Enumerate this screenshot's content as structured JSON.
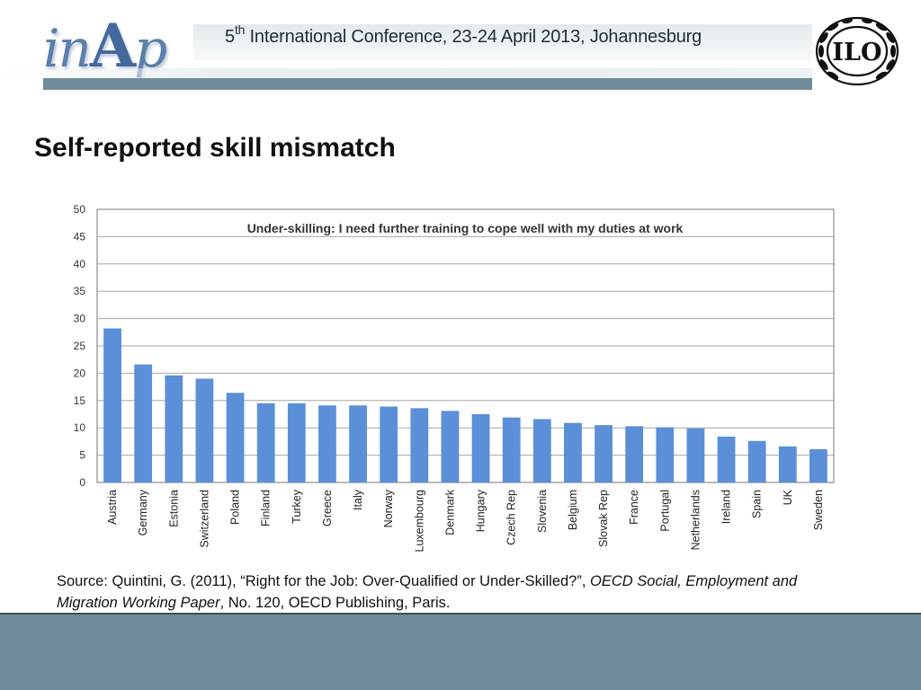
{
  "header": {
    "logo_text_left": "in",
    "logo_text_cap": "A",
    "logo_text_right": "p",
    "conference_ordinal": "5",
    "conference_sup": "th",
    "conference_title": "International Conference, 23-24 April 2013, Johannesburg",
    "ilo_logo_text": "ILO"
  },
  "slide": {
    "title": "Self-reported skill mismatch"
  },
  "source": {
    "prefix": "Source: Quintini, G. (2011), “Right for the Job: Over-Qualified or Under-Skilled?”, ",
    "italic": "OECD Social, Employment and Migration Working Paper",
    "suffix": ", No. 120, OECD Publishing, Paris."
  },
  "colors": {
    "bar": "#5b8fd8",
    "header_bar": "#6e8c9b",
    "footer": "#6e8c9b",
    "grid": "#a6a6a6"
  },
  "chart_data": {
    "type": "bar",
    "title": "Under-skilling: I need further training to cope well with my duties at work",
    "xlabel": "",
    "ylabel": "",
    "ylim": [
      0,
      50
    ],
    "yticks": [
      0,
      5,
      10,
      15,
      20,
      25,
      30,
      35,
      40,
      45,
      50
    ],
    "grid": true,
    "categories": [
      "Austria",
      "Germany",
      "Estonia",
      "Switzerland",
      "Poland",
      "Finland",
      "Turkey",
      "Greece",
      "Italy",
      "Norway",
      "Luxembourg",
      "Denmark",
      "Hungary",
      "Czech Rep",
      "Slovenia",
      "Belgium",
      "Slovak Rep",
      "France",
      "Portugal",
      "Netherlands",
      "Ireland",
      "Spain",
      "UK",
      "Sweden"
    ],
    "values": [
      28.2,
      21.6,
      19.6,
      19.0,
      16.4,
      14.5,
      14.5,
      14.1,
      14.1,
      13.9,
      13.6,
      13.1,
      12.5,
      11.9,
      11.6,
      10.9,
      10.5,
      10.3,
      10.1,
      9.9,
      8.4,
      7.6,
      6.6,
      6.1
    ]
  }
}
